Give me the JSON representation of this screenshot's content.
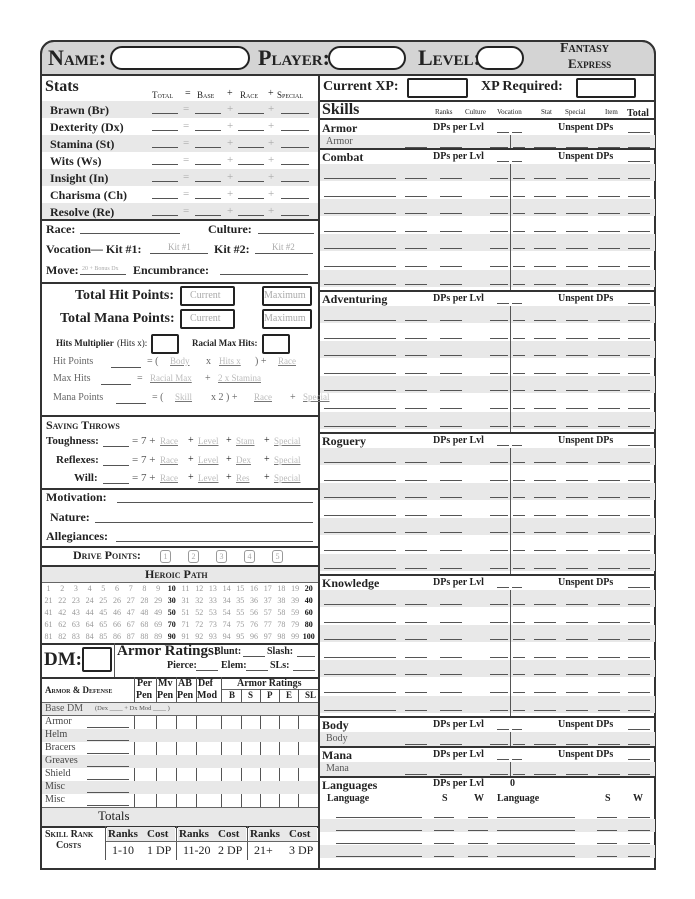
{
  "header": {
    "name_label": "Name:",
    "player_label": "Player:",
    "level_label": "Level:",
    "logo_line1": "Fantasy",
    "logo_line2": "Express"
  },
  "stats": {
    "title": "Stats",
    "col_total": "Total",
    "col_eq": "=",
    "col_base": "Base",
    "col_plus1": "+",
    "col_race": "Race",
    "col_plus2": "+",
    "col_special": "Special",
    "rows": [
      "Brawn (Br)",
      "Dexterity (Dx)",
      "Stamina (St)",
      "Wits (Ws)",
      "Insight (In)",
      "Charisma (Ch)",
      "Resolve (Re)"
    ],
    "eq": "=",
    "plus": "+"
  },
  "identity": {
    "race": "Race:",
    "culture": "Culture:",
    "vocation": "Vocation— Kit #1:",
    "kit1_hint": "Kit #1",
    "kit2": "Kit #2:",
    "kit2_hint": "Kit #2",
    "move": "Move:",
    "move_hint": "20 + Bonus Dx",
    "encumbrance": "Encumbrance:"
  },
  "points": {
    "total_hp": "Total Hit Points:",
    "total_mana": "Total Mana Points:",
    "current_hint": "Current",
    "maximum_hint": "Maximum",
    "hits_multiplier": "Hits Multiplier",
    "hits_x": "(Hits x):",
    "racial_max_hits": "Racial Max Hits:",
    "formulas": [
      [
        {
          "k": "t",
          "v": "Hit Points"
        },
        {
          "k": "b"
        },
        {
          "k": "t",
          "v": "= ("
        },
        {
          "k": "h",
          "v": "Body"
        },
        {
          "k": "t",
          "v": "x"
        },
        {
          "k": "h",
          "v": "Hits x"
        },
        {
          "k": "t",
          "v": ") +"
        },
        {
          "k": "h",
          "v": "Race"
        }
      ],
      [
        {
          "k": "t",
          "v": "Max Hits"
        },
        {
          "k": "b"
        },
        {
          "k": "t",
          "v": "="
        },
        {
          "k": "h",
          "v": "Racial Max"
        },
        {
          "k": "t",
          "v": "+"
        },
        {
          "k": "h",
          "v": "2 x Stamina"
        }
      ],
      [
        {
          "k": "t",
          "v": "Mana Points"
        },
        {
          "k": "b"
        },
        {
          "k": "t",
          "v": "= ("
        },
        {
          "k": "h",
          "v": "Skill"
        },
        {
          "k": "t",
          "v": "x 2 ) +"
        },
        {
          "k": "h",
          "v": "Race"
        },
        {
          "k": "t",
          "v": "+"
        },
        {
          "k": "h",
          "v": "Special"
        }
      ]
    ]
  },
  "saving_throws": {
    "title": "Saving Throws",
    "base": "= 7 +",
    "rows": [
      {
        "label": "Toughness:",
        "hints": [
          "Race",
          "Level",
          "Stam",
          "Special"
        ]
      },
      {
        "label": "Reflexes:",
        "hints": [
          "Race",
          "Level",
          "Dex",
          "Special"
        ]
      },
      {
        "label": "Will:",
        "hints": [
          "Race",
          "Level",
          "Res",
          "Special"
        ]
      }
    ]
  },
  "personality": {
    "motivation": "Motivation:",
    "nature": "Nature:",
    "allegiances": "Allegiances:",
    "drive_points": "Drive Points:",
    "drive_boxes": [
      "1",
      "2",
      "3",
      "4",
      "5"
    ]
  },
  "heroic_path": {
    "title": "Heroic Path",
    "max": 100
  },
  "defense": {
    "dm": "DM:",
    "armor_ratings": "Armor Ratings:",
    "blunt": "Blunt:",
    "slash": "Slash:",
    "pierce": "Pierce:",
    "elem": "Elem:",
    "sls": "SLs:",
    "table_title": "Armor & Defense",
    "cols": [
      [
        "Per",
        "Pen"
      ],
      [
        "Mv",
        "Pen"
      ],
      [
        "AB",
        "Pen"
      ],
      [
        "Def",
        "Mod"
      ]
    ],
    "ar_title": "Armor Ratings",
    "ar_cols": [
      "B",
      "S",
      "P",
      "E",
      "SL"
    ],
    "base_dm": "Base DM",
    "base_dm_note": "(Dex ____ + Dx Mod ____ )",
    "rows": [
      "Armor",
      "Helm",
      "Bracers",
      "Greaves",
      "Shield",
      "Misc",
      "Misc"
    ],
    "totals": "Totals"
  },
  "skill_rank_costs": {
    "title1": "Skill Rank",
    "title2": "Costs",
    "ranks": "Ranks",
    "cost": "Cost",
    "tiers": [
      {
        "ranks": "1-10",
        "cost": "1 DP"
      },
      {
        "ranks": "11-20",
        "cost": "2 DP"
      },
      {
        "ranks": "21+",
        "cost": "3 DP"
      }
    ]
  },
  "xp": {
    "current": "Current XP:",
    "required": "XP Required:"
  },
  "skills": {
    "title": "Skills",
    "cols": [
      "Ranks",
      "Culture",
      "Vocation",
      "Stat",
      "Special",
      "Item",
      "Total"
    ],
    "dps_per_lvl": "DPs per Lvl",
    "unspent": "Unspent DPs",
    "categories": [
      {
        "name": "Armor",
        "sub": "Armor"
      },
      {
        "name": "Combat"
      },
      {
        "name": "Adventuring"
      },
      {
        "name": "Roguery"
      },
      {
        "name": "Knowledge"
      },
      {
        "name": "Body",
        "sub": "Body"
      },
      {
        "name": "Mana",
        "sub": "Mana"
      }
    ]
  },
  "languages": {
    "title": "Languages",
    "dps_per_lvl": "DPs per Lvl",
    "dps_value": "0",
    "col_language": "Language",
    "col_s": "S",
    "col_w": "W"
  }
}
